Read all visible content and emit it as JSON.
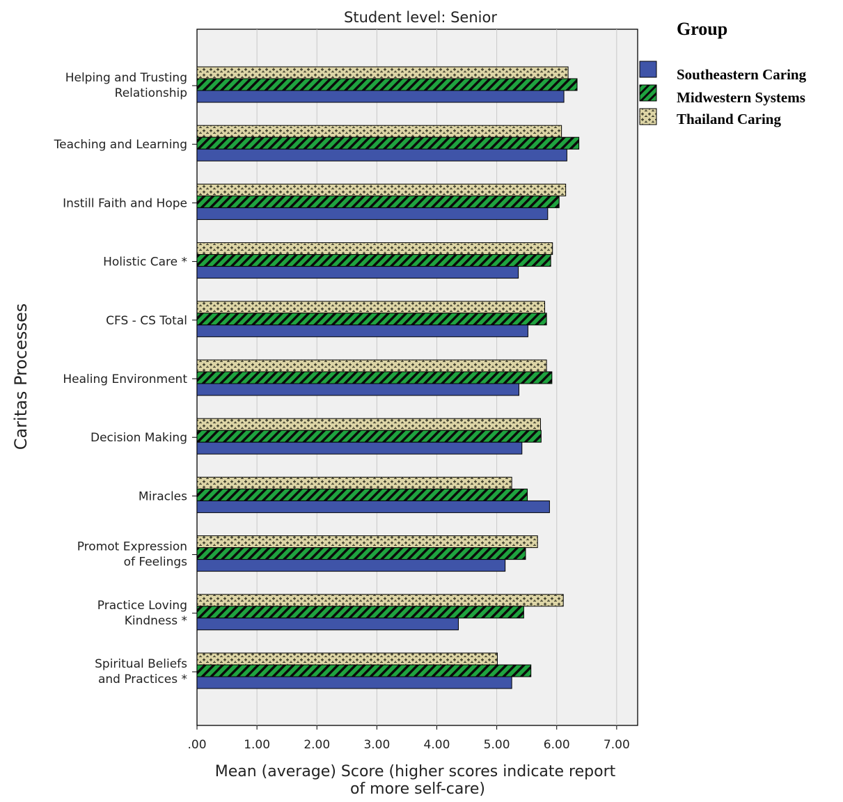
{
  "chart_data": {
    "type": "bar",
    "orientation": "horizontal",
    "title": "Student level: Senior",
    "xlabel": "Mean (average) Score (higher scores indicate report of more self-care)",
    "xlabel_lines": [
      "Mean (average) Score (higher scores indicate report",
      "of more self-care)"
    ],
    "ylabel": "Caritas Processes",
    "xlim": [
      0,
      7.35
    ],
    "xticks": [
      0,
      1,
      2,
      3,
      4,
      5,
      6,
      7
    ],
    "xtick_labels": [
      ".00",
      "1.00",
      "2.00",
      "3.00",
      "4.00",
      "5.00",
      "6.00",
      "7.00"
    ],
    "grid": "vertical",
    "legend_title": "Group",
    "legend_position": "right",
    "categories": [
      "Helping and Trusting Relationship",
      "Teaching and Learning",
      "Instill Faith and Hope",
      "Holistic Care *",
      "CFS - CS Total",
      "Healing Environment",
      "Decision Making",
      "Miracles",
      "Promot Expression of Feelings",
      "Practice Loving Kindness *",
      "Spiritual Beliefs and Practices *"
    ],
    "category_lines": [
      [
        "Helping and Trusting",
        "Relationship"
      ],
      [
        "Teaching and Learning"
      ],
      [
        "Instill Faith and Hope"
      ],
      [
        "Holistic Care *"
      ],
      [
        "CFS - CS Total"
      ],
      [
        "Healing Environment"
      ],
      [
        "Decision Making"
      ],
      [
        "Miracles"
      ],
      [
        "Promot Expression",
        "of Feelings"
      ],
      [
        "Practice Loving",
        "Kindness *"
      ],
      [
        "Spiritual Beliefs",
        "and Practices *"
      ]
    ],
    "series": [
      {
        "name": "Southeastern Caring",
        "color": "#3f54a8",
        "pattern": "solid",
        "values": [
          6.12,
          6.17,
          5.85,
          5.36,
          5.52,
          5.37,
          5.42,
          5.88,
          5.14,
          4.36,
          5.25
        ]
      },
      {
        "name": "Midwestern Systems",
        "color": "#1f9e3e",
        "pattern": "diagonal-stripes",
        "values": [
          6.34,
          6.37,
          6.04,
          5.9,
          5.83,
          5.92,
          5.74,
          5.51,
          5.48,
          5.45,
          5.57
        ]
      },
      {
        "name": "Thailand Caring",
        "color": "#d8cf9e",
        "pattern": "dotted-cross",
        "values": [
          6.19,
          6.08,
          6.15,
          5.93,
          5.8,
          5.83,
          5.73,
          5.25,
          5.68,
          6.11,
          5.01
        ]
      }
    ]
  }
}
